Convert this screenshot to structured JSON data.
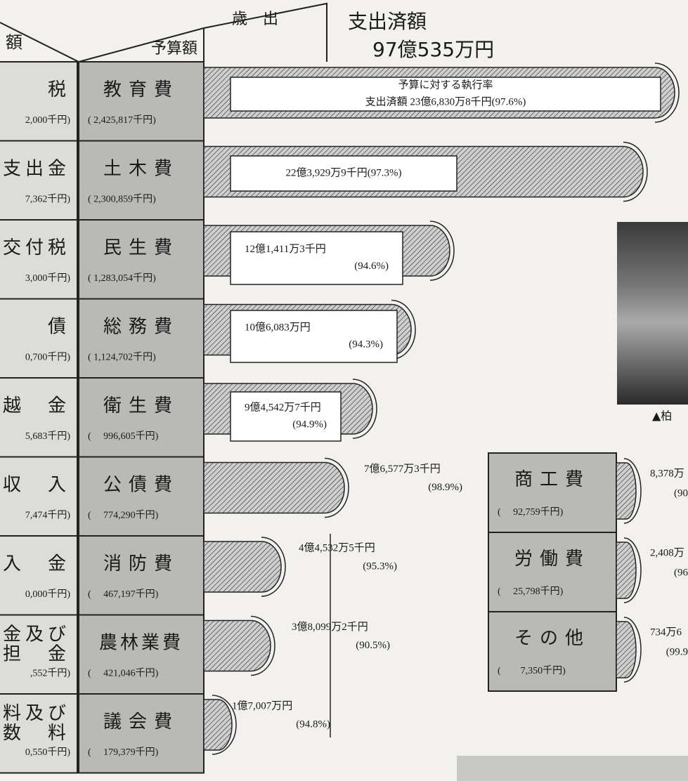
{
  "header": {
    "revenue_label": "額",
    "expenditure_label": "歳　出",
    "budget_label": "予算額",
    "total_label": "支出済額",
    "total_value": "97億535万円"
  },
  "left_items": [
    {
      "name": [
        "税"
      ],
      "amount": "2,000千円)"
    },
    {
      "name": [
        "支出金"
      ],
      "amount": "7,362千円)"
    },
    {
      "name": [
        "交付税"
      ],
      "amount": "3,000千円)"
    },
    {
      "name": [
        "債"
      ],
      "amount": "0,700千円)"
    },
    {
      "name": [
        "越　金"
      ],
      "amount": "5,683千円)"
    },
    {
      "name": [
        "収　入"
      ],
      "amount": "7,474千円)"
    },
    {
      "name": [
        "入　金"
      ],
      "amount": "0,000千円)"
    },
    {
      "name": [
        "金及び",
        "担　金"
      ],
      "amount": ",552千円)"
    },
    {
      "name": [
        "料及び",
        "数　料"
      ],
      "amount": "0,550千円)"
    }
  ],
  "items": [
    {
      "name": "教育費",
      "budget": "( 2,425,817千円)",
      "spent": [
        "予算に対する執行率",
        "支出済額 23億6,830万8千円(97.6%)"
      ]
    },
    {
      "name": "土木費",
      "budget": "( 2,300,859千円)",
      "spent": [
        "22億3,929万9千円(97.3%)"
      ]
    },
    {
      "name": "民生費",
      "budget": "( 1,283,054千円)",
      "spent": [
        "12億1,411万3千円",
        "(94.6%)"
      ]
    },
    {
      "name": "総務費",
      "budget": "( 1,124,702千円)",
      "spent": [
        "10億6,083万円",
        "(94.3%)"
      ]
    },
    {
      "name": "衛生費",
      "budget": "(　 996,605千円)",
      "spent": [
        "9億4,542万7千円",
        "(94.9%)"
      ]
    },
    {
      "name": "公債費",
      "budget": "(　 774,290千円)",
      "spent": [
        "7億6,577万3千円",
        "(98.9%)"
      ]
    },
    {
      "name": "消防費",
      "budget": "(　 467,197千円)",
      "spent": [
        "4億4,532万5千円",
        "(95.3%)"
      ]
    },
    {
      "name": "農林業費",
      "budget": "(　 421,046千円)",
      "spent": [
        "3億8,099万2千円",
        "(90.5%)"
      ]
    },
    {
      "name": "議会費",
      "budget": "(　 179,379千円)",
      "spent": [
        "1億7,007万円",
        "(94.8%)"
      ]
    }
  ],
  "photo_caption": "▲柏",
  "side_items": [
    {
      "name": "商工費",
      "budget": "(　 92,759千円)",
      "spent": [
        "8,378万",
        "(90"
      ]
    },
    {
      "name": "労働費",
      "budget": "(　 25,798千円)",
      "spent": [
        "2,408万",
        "(96"
      ]
    },
    {
      "name": "その他",
      "budget": "(　　7,350千円)",
      "spent": [
        "734万6",
        "(99.9"
      ]
    }
  ]
}
